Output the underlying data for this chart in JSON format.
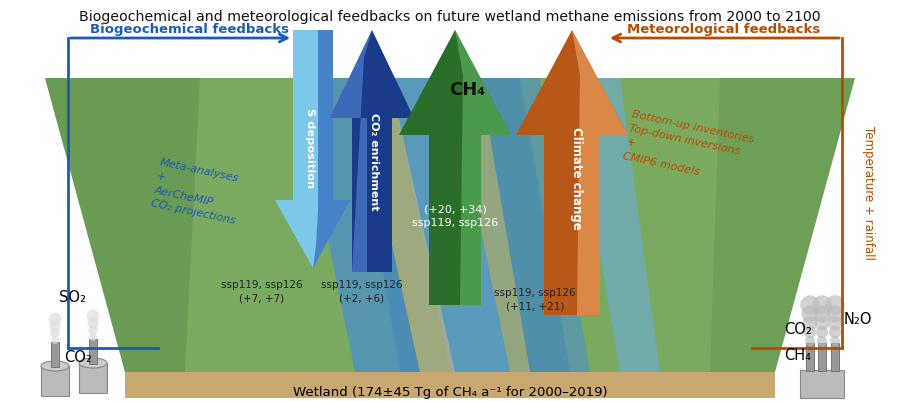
{
  "title": "Biogeochemical and meteorological feedbacks on future wetland methane emissions from 2000 to 2100",
  "title_fontsize": 10.2,
  "title_color": "#111111",
  "bio_feedbacks_label": "Biogeochemical feedbacks",
  "bio_feedbacks_color": "#1a5cb5",
  "met_feedbacks_label": "Meteorological feedbacks",
  "met_feedbacks_color": "#b84c00",
  "bio_annot": "Meta-analyses\n+\nAerCheMIP\nCO₂ projections",
  "met_annot": "Bottom-up inventories\nTop-down inversions\n+\nCMIP6 models",
  "temp_label": "Temperature + rainfall",
  "temp_color": "#b84c00",
  "so2_label": "SO₂",
  "co2_left_label": "CO₂",
  "co2_right_label": "CO₂",
  "n2o_label": "N₂O",
  "ch4_right_label": "CH₄",
  "s_dep_label": "S deposition",
  "co2_enrich_label": "CO₂ enrichment",
  "ch4_label": "CH₄",
  "climate_label": "Climate change",
  "ch4_annot": "(+20, +34)\nssp119, ssp126",
  "s_dep_annot": "ssp119, ssp126\n(+7, +7)",
  "co2_enrich_annot": "ssp119, ssp126\n(+2, +6)",
  "climate_annot": "ssp119, ssp126\n(+11, +21)",
  "wetland_label": "Wetland (174±45 Tg of CH₄ a⁻¹ for 2000–2019)",
  "land_color": "#7aaa60",
  "land_dark": "#4a8040",
  "water_color": "#4a8ec8",
  "water_light": "#6aaee8",
  "ground_color": "#c8a870",
  "s_dep_light": "#7bc8e8",
  "s_dep_dark": "#2a60b8",
  "co2_enrich_light": "#4a7ac8",
  "co2_enrich_dark": "#1a3a8a",
  "ch4_light": "#5aae5a",
  "ch4_dark": "#2a6e2a",
  "climate_light": "#e89858",
  "climate_dark": "#b85818",
  "bio_bracket_color": "#1a5cb5",
  "met_bracket_color": "#b84c00",
  "annot_color": "#222222",
  "bg_color": "#ffffff"
}
